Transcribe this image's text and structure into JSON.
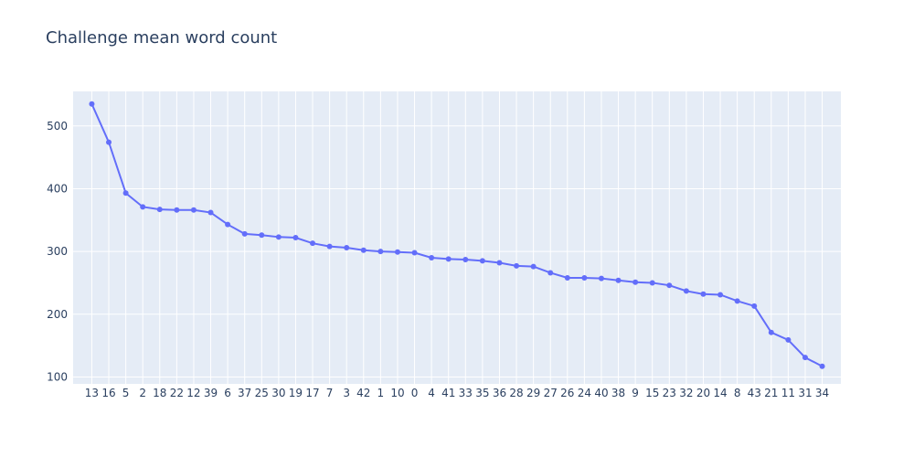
{
  "chart_data": {
    "type": "line",
    "title": "Challenge mean word count",
    "xlabel": "",
    "ylabel": "",
    "categories": [
      "13",
      "16",
      "5",
      "2",
      "18",
      "22",
      "12",
      "39",
      "6",
      "37",
      "25",
      "30",
      "19",
      "17",
      "7",
      "3",
      "42",
      "1",
      "10",
      "0",
      "4",
      "41",
      "33",
      "35",
      "36",
      "28",
      "29",
      "27",
      "26",
      "24",
      "40",
      "38",
      "9",
      "15",
      "23",
      "32",
      "20",
      "14",
      "8",
      "43",
      "21",
      "11",
      "31",
      "34"
    ],
    "series": [
      {
        "values": [
          535,
          474,
          393,
          371,
          367,
          366,
          366,
          362,
          343,
          328,
          326,
          323,
          322,
          313,
          308,
          306,
          302,
          300,
          299,
          298,
          290,
          288,
          287,
          285,
          282,
          277,
          276,
          266,
          258,
          258,
          257,
          254,
          251,
          250,
          246,
          237,
          232,
          231,
          221,
          213,
          171,
          159,
          131,
          117
        ],
        "color": "#636efa"
      }
    ],
    "ylim": [
      89,
      555
    ],
    "yticks": [
      100,
      200,
      300,
      400,
      500
    ],
    "grid": true,
    "colors": {
      "plot_bg": "#e5ecf6",
      "grid": "#ffffff",
      "text": "#2a3f5f"
    }
  }
}
